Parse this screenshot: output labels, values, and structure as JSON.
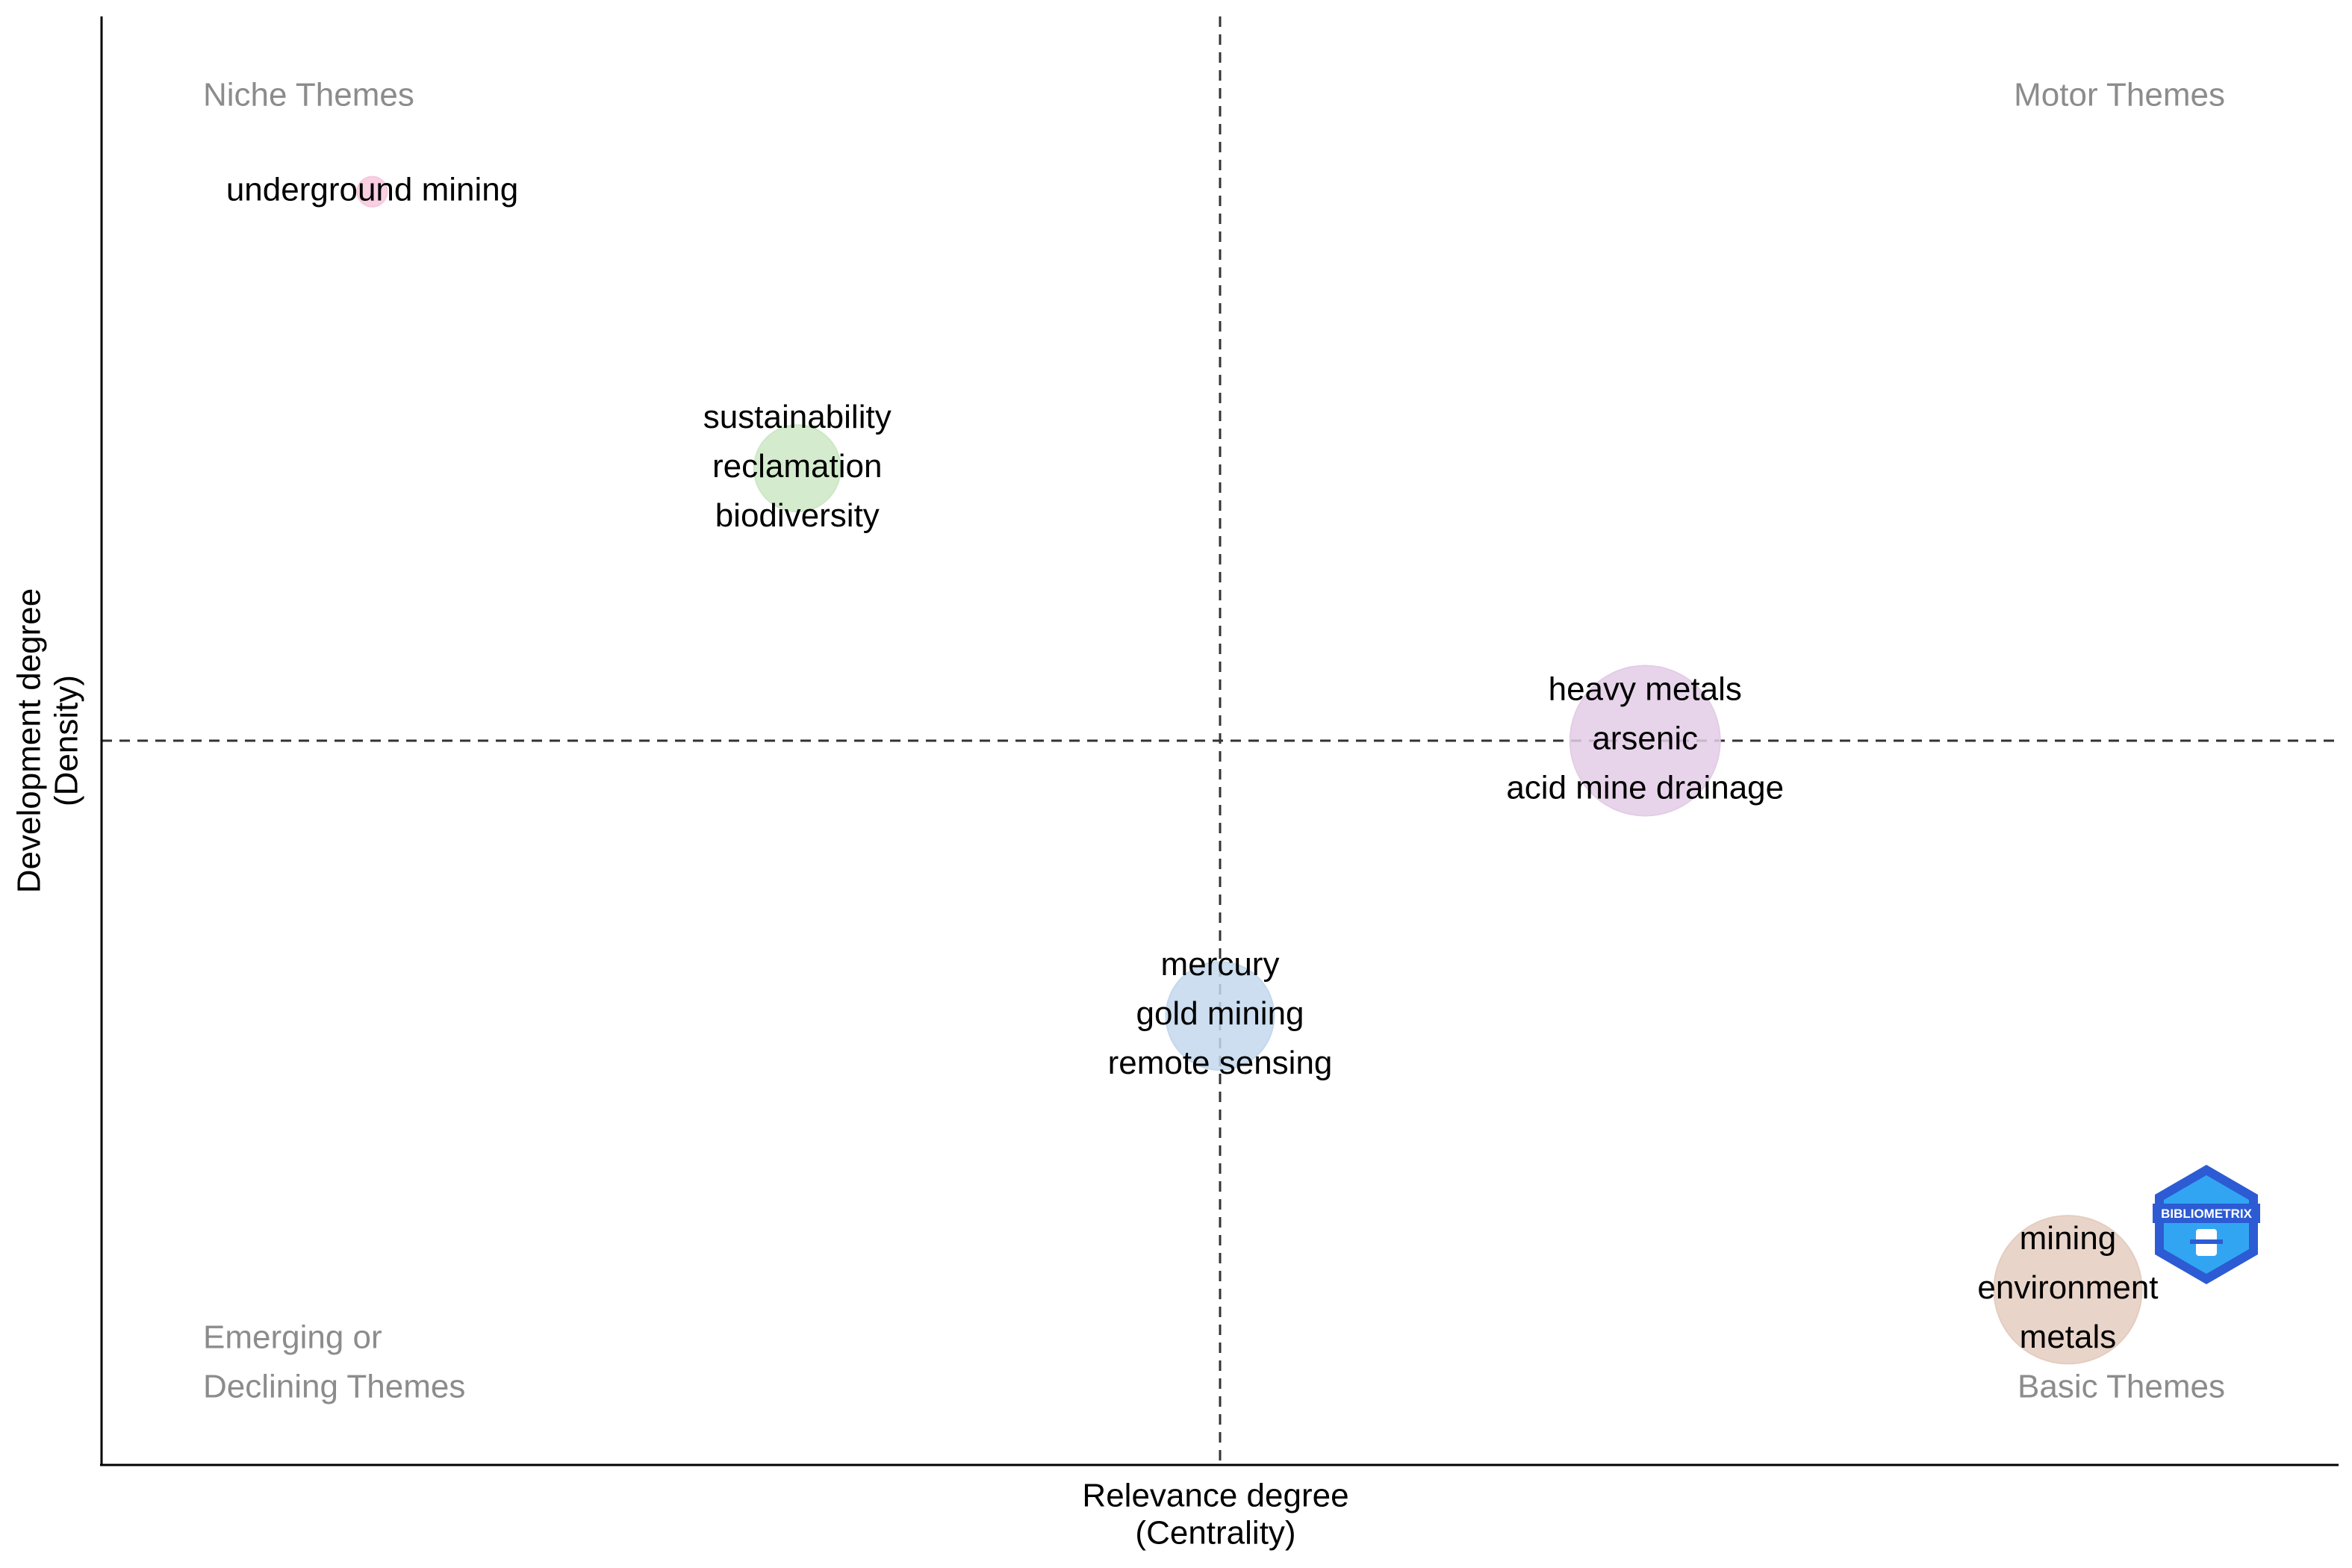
{
  "chart_data": {
    "type": "scatter",
    "title": "",
    "xlabel": [
      "Relevance degree",
      "(Centrality)"
    ],
    "ylabel": [
      "Development degree",
      "(Density)"
    ],
    "xlim": [
      0,
      1
    ],
    "ylim": [
      0,
      1
    ],
    "reference_lines": {
      "x": 0.5,
      "y": 0.5
    },
    "grid": false,
    "quadrant_labels": {
      "top_left": [
        "Niche Themes"
      ],
      "top_right": [
        "Motor Themes"
      ],
      "bottom_left": [
        "Emerging or",
        "Declining Themes"
      ],
      "bottom_right": [
        "Basic Themes"
      ]
    },
    "points": [
      {
        "labels": [
          "underground mining"
        ],
        "x": 0.121,
        "y": 0.879,
        "size": 0.03,
        "color": "#f7c8dd"
      },
      {
        "labels": [
          "sustainability",
          "reclamation",
          "biodiversity"
        ],
        "x": 0.311,
        "y": 0.688,
        "size": 0.25,
        "color": "#cce8c6"
      },
      {
        "labels": [
          "heavy metals",
          "arsenic",
          "acid mine drainage"
        ],
        "x": 0.69,
        "y": 0.5,
        "size": 0.75,
        "color": "#e3cce6"
      },
      {
        "labels": [
          "mercury",
          "gold mining",
          "remote sensing"
        ],
        "x": 0.5,
        "y": 0.31,
        "size": 0.39,
        "color": "#c3d8ec"
      },
      {
        "labels": [
          "mining",
          "environment",
          "metals"
        ],
        "x": 0.879,
        "y": 0.121,
        "size": 0.73,
        "color": "#e4cdbf"
      }
    ]
  },
  "logo": {
    "text": "BIBLIOMETRIX",
    "colors": [
      "#2c5bd4",
      "#32a5f2"
    ]
  }
}
